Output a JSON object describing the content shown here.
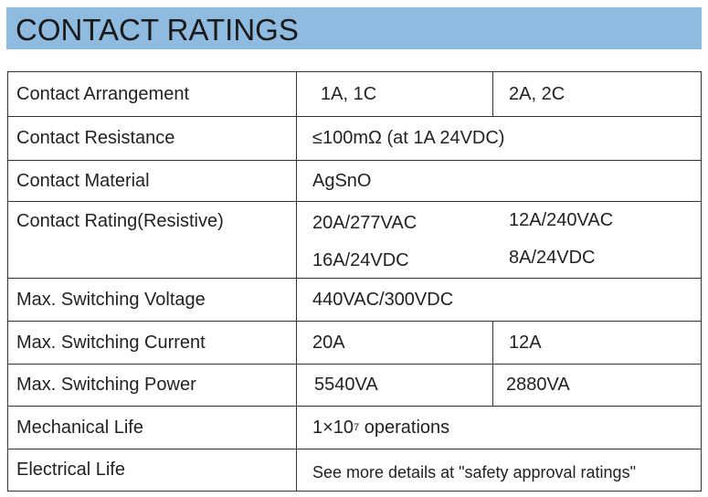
{
  "header": {
    "title": "CONTACT RATINGS"
  },
  "table": {
    "rows": [
      {
        "label": "Contact Arrangement",
        "cells": [
          "1A, 1C",
          "2A, 2C"
        ]
      },
      {
        "label": "Contact Resistance",
        "cells": [
          "≤100mΩ (at 1A 24VDC)"
        ]
      },
      {
        "label": "Contact Material",
        "cells": [
          "AgSnO"
        ]
      },
      {
        "label": "Contact Rating(Resistive)",
        "cells": [
          [
            "20A/277VAC",
            "16A/24VDC"
          ],
          [
            "12A/240VAC",
            "8A/24VDC"
          ]
        ]
      },
      {
        "label": "Max. Switching Voltage",
        "cells": [
          "440VAC/300VDC"
        ]
      },
      {
        "label": "Max. Switching Current",
        "cells": [
          "20A",
          "12A"
        ]
      },
      {
        "label": "Max. Switching Power",
        "cells": [
          "5540VA",
          "2880VA"
        ]
      },
      {
        "label": "Mechanical Life",
        "cells": [
          {
            "base": "1×10",
            "exponent": "7",
            "unit": "operations"
          }
        ]
      },
      {
        "label": "Electrical Life",
        "cells": [
          "See more details at \"safety approval ratings\""
        ]
      }
    ]
  }
}
